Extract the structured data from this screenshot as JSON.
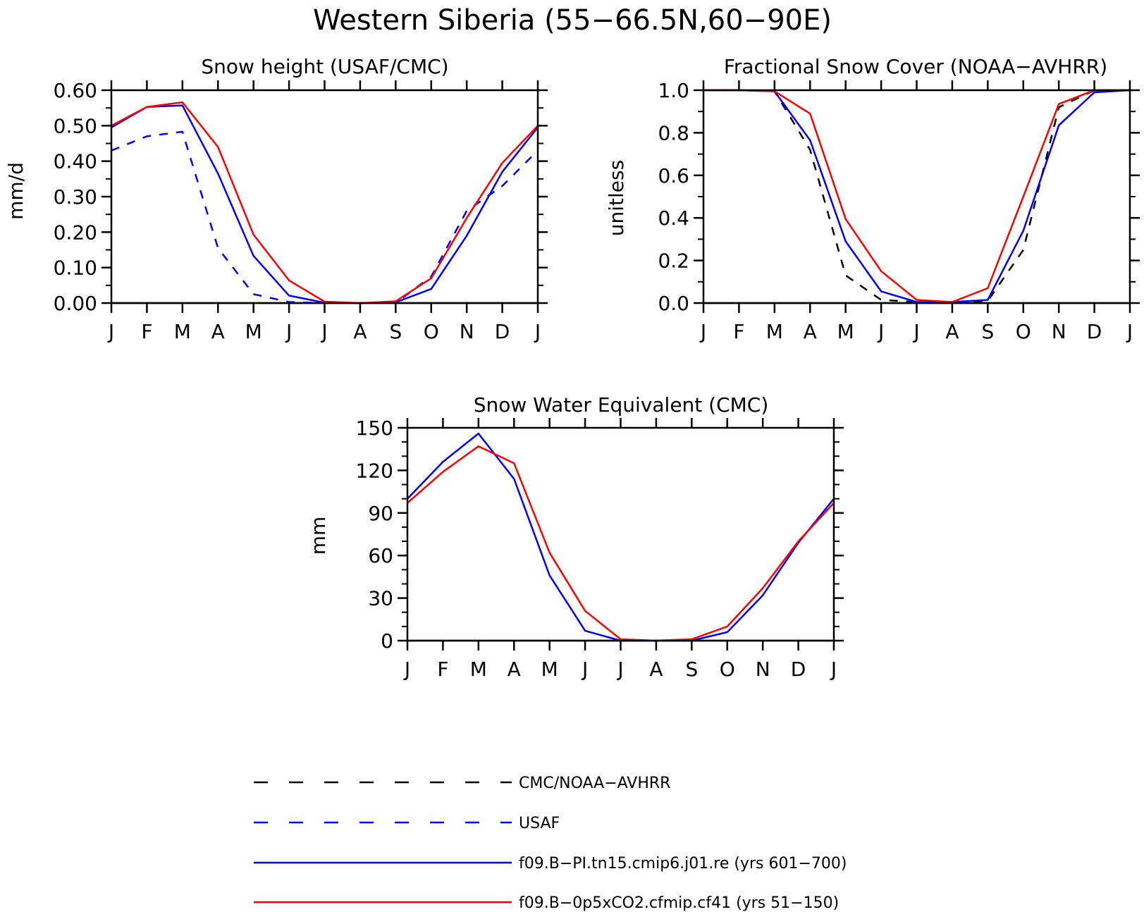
{
  "figure": {
    "title": "Western Siberia (55−66.5N,60−90E)"
  },
  "series_styles": {
    "CMC/NOAA-AVHRR": {
      "color": "#000000",
      "dash": "dashed"
    },
    "USAF": {
      "color": "#0000ff",
      "dash": "dashed"
    },
    "f09.B−PI.tn15.cmip6.j01.re (yrs 601−700)": {
      "color": "#0000ff",
      "dash": "solid"
    },
    "f09.B−0p5xCO2.cfmip.cf41 (yrs 51−150)": {
      "color": "#ff0000",
      "dash": "solid"
    }
  },
  "legend": {
    "placement": "bottom-center",
    "entries": [
      {
        "label": "CMC/NOAA−AVHRR",
        "series": "CMC/NOAA-AVHRR"
      },
      {
        "label": "USAF",
        "series": "USAF"
      },
      {
        "label": "f09.B−PI.tn15.cmip6.j01.re (yrs 601−700)",
        "series": "f09.B−PI.tn15.cmip6.j01.re (yrs 601−700)"
      },
      {
        "label": "f09.B−0p5xCO2.cfmip.cf41 (yrs 51−150)",
        "series": "f09.B−0p5xCO2.cfmip.cf41 (yrs 51−150)"
      }
    ]
  },
  "chart_data": [
    {
      "type": "line",
      "title": "Snow height (USAF/CMC)",
      "xlabel": "",
      "ylabel": "mm/d",
      "categories": [
        "J",
        "F",
        "M",
        "A",
        "M",
        "J",
        "J",
        "A",
        "S",
        "O",
        "N",
        "D",
        "J"
      ],
      "ylim": [
        0,
        0.6
      ],
      "yticks": [
        0.0,
        0.1,
        0.2,
        0.3,
        0.4,
        0.5,
        0.6
      ],
      "ytick_labels": [
        "0.00",
        "0.10",
        "0.20",
        "0.30",
        "0.40",
        "0.50",
        "0.60"
      ],
      "minor_per_major": 2,
      "grid": false,
      "series": [
        {
          "name": "USAF",
          "values": [
            0.43,
            0.47,
            0.483,
            0.155,
            0.025,
            0.003,
            0.0,
            0.0,
            0.0,
            0.075,
            0.26,
            0.33,
            0.43
          ]
        },
        {
          "name": "f09.B−PI.tn15.cmip6.j01.re (yrs 601−700)",
          "values": [
            0.495,
            0.553,
            0.557,
            0.365,
            0.133,
            0.021,
            0.001,
            0.0,
            0.002,
            0.04,
            0.19,
            0.37,
            0.495
          ]
        },
        {
          "name": "f09.B−0p5xCO2.cfmip.cf41 (yrs 51−150)",
          "values": [
            0.5,
            0.553,
            0.566,
            0.44,
            0.193,
            0.064,
            0.004,
            0.0,
            0.005,
            0.07,
            0.24,
            0.395,
            0.5
          ]
        }
      ]
    },
    {
      "type": "line",
      "title": "Fractional Snow Cover (NOAA−AVHRR)",
      "xlabel": "",
      "ylabel": "unitless",
      "categories": [
        "J",
        "F",
        "M",
        "A",
        "M",
        "J",
        "J",
        "A",
        "S",
        "O",
        "N",
        "D",
        "J"
      ],
      "ylim": [
        0,
        1.0
      ],
      "yticks": [
        0.0,
        0.2,
        0.4,
        0.6,
        0.8,
        1.0
      ],
      "ytick_labels": [
        "0.0",
        "0.2",
        "0.4",
        "0.6",
        "0.8",
        "1.0"
      ],
      "minor_per_major": 2,
      "grid": false,
      "series": [
        {
          "name": "CMC/NOAA-AVHRR",
          "values": [
            1.0,
            1.0,
            0.995,
            0.72,
            0.13,
            0.015,
            0.005,
            0.005,
            0.01,
            0.25,
            0.92,
            1.0,
            1.0
          ]
        },
        {
          "name": "f09.B−PI.tn15.cmip6.j01.re (yrs 601−700)",
          "values": [
            1.0,
            1.0,
            0.995,
            0.765,
            0.29,
            0.055,
            0.005,
            0.005,
            0.015,
            0.34,
            0.835,
            0.99,
            1.0
          ]
        },
        {
          "name": "f09.B−0p5xCO2.cfmip.cf41 (yrs 51−150)",
          "values": [
            1.0,
            1.0,
            0.995,
            0.89,
            0.395,
            0.15,
            0.015,
            0.005,
            0.07,
            0.5,
            0.935,
            1.0,
            1.0
          ]
        }
      ]
    },
    {
      "type": "line",
      "title": "Snow Water Equivalent (CMC)",
      "xlabel": "",
      "ylabel": "mm",
      "categories": [
        "J",
        "F",
        "M",
        "A",
        "M",
        "J",
        "J",
        "A",
        "S",
        "O",
        "N",
        "D",
        "J"
      ],
      "ylim": [
        0,
        150
      ],
      "yticks": [
        0,
        30,
        60,
        90,
        120,
        150
      ],
      "ytick_labels": [
        "0",
        "30",
        "60",
        "90",
        "120",
        "150"
      ],
      "minor_per_major": 3,
      "grid": false,
      "series": [
        {
          "name": "f09.B−PI.tn15.cmip6.j01.re (yrs 601−700)",
          "values": [
            100,
            126,
            146,
            114,
            46,
            7,
            0,
            0,
            0,
            6,
            32,
            69,
            100
          ]
        },
        {
          "name": "f09.B−0p5xCO2.cfmip.cf41 (yrs 51−150)",
          "values": [
            97,
            119,
            137,
            125,
            62,
            21,
            1,
            0,
            1,
            10,
            37,
            70,
            97
          ]
        }
      ]
    }
  ]
}
